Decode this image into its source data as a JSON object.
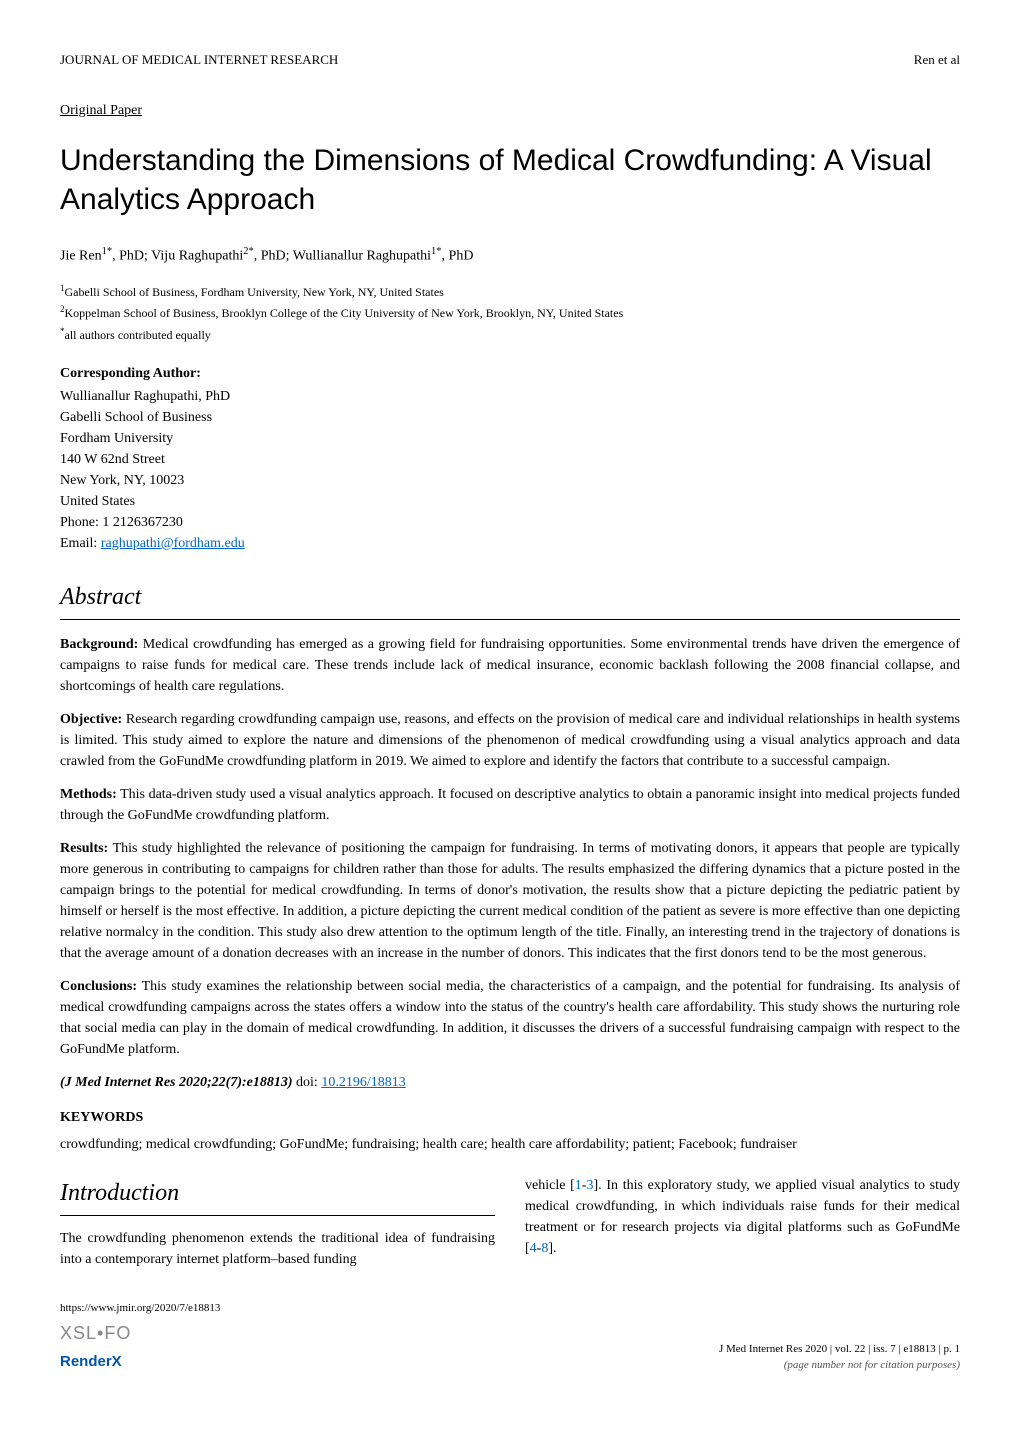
{
  "header": {
    "journal": "JOURNAL OF MEDICAL INTERNET RESEARCH",
    "authors_short": "Ren et al"
  },
  "section_label": "Original Paper",
  "title": "Understanding the Dimensions of Medical Crowdfunding: A Visual Analytics Approach",
  "authors_line": "Jie Ren",
  "authors_sup1": "1*",
  "authors_mid1": ", PhD; Viju Raghupathi",
  "authors_sup2": "2*",
  "authors_mid2": ", PhD; Wullianallur Raghupathi",
  "authors_sup3": "1*",
  "authors_end": ", PhD",
  "affiliations": {
    "a1_sup": "1",
    "a1": "Gabelli School of Business, Fordham University, New York, NY, United States",
    "a2_sup": "2",
    "a2": "Koppelman School of Business, Brooklyn College of the City University of New York, Brooklyn, NY, United States",
    "a3_sup": "*",
    "a3": "all authors contributed equally"
  },
  "corresponding": {
    "label": "Corresponding Author:",
    "name": "Wullianallur Raghupathi, PhD",
    "line1": "Gabelli School of Business",
    "line2": "Fordham University",
    "line3": "140 W 62nd Street",
    "line4": "New York, NY, 10023",
    "line5": "United States",
    "phone": "Phone: 1 2126367230",
    "email_label": "Email: ",
    "email": "raghupathi@fordham.edu"
  },
  "abstract": {
    "heading": "Abstract",
    "background_label": "Background:",
    "background": " Medical crowdfunding has emerged as a growing field for fundraising opportunities. Some environmental trends have driven the emergence of campaigns to raise funds for medical care. These trends include lack of medical insurance, economic backlash following the 2008 financial collapse, and shortcomings of health care regulations.",
    "objective_label": "Objective:",
    "objective": " Research regarding crowdfunding campaign use, reasons, and effects on the provision of medical care and individual relationships in health systems is limited. This study aimed to explore the nature and dimensions of the phenomenon of medical crowdfunding using a visual analytics approach and data crawled from the GoFundMe crowdfunding platform in 2019. We aimed to explore and identify the factors that contribute to a successful campaign.",
    "methods_label": "Methods:",
    "methods": " This data-driven study used a visual analytics approach. It focused on descriptive analytics to obtain a panoramic insight into medical projects funded through the GoFundMe crowdfunding platform.",
    "results_label": "Results:",
    "results": " This study highlighted the relevance of positioning the campaign for fundraising. In terms of motivating donors, it appears that people are typically more generous in contributing to campaigns for children rather than those for adults. The results emphasized the differing dynamics that a picture posted in the campaign brings to the potential for medical crowdfunding. In terms of donor's motivation, the results show that a picture depicting the pediatric patient by himself or herself is the most effective. In addition, a picture depicting the current medical condition of the patient as severe is more effective than one depicting relative normalcy in the condition. This study also drew attention to the optimum length of the title. Finally, an interesting trend in the trajectory of donations is that the average amount of a donation decreases with an increase in the number of donors. This indicates that the first donors tend to be the most generous.",
    "conclusions_label": "Conclusions:",
    "conclusions": " This study examines the relationship between social media, the characteristics of a campaign, and the potential for fundraising. Its analysis of medical crowdfunding campaigns across the states offers a window into the status of the country's health care affordability. This study shows the nurturing role that social media can play in the domain of medical crowdfunding. In addition, it discusses the drivers of a successful fundraising campaign with respect to the GoFundMe platform."
  },
  "citation": {
    "text": "(J Med Internet Res 2020;22(7):e18813)",
    "doi_label": " doi: ",
    "doi": "10.2196/18813"
  },
  "keywords": {
    "label": "KEYWORDS",
    "text": "crowdfunding; medical crowdfunding; GoFundMe; fundraising; health care; health care affordability; patient; Facebook; fundraiser"
  },
  "introduction": {
    "heading": "Introduction",
    "col1": "The crowdfunding phenomenon extends the traditional idea of fundraising into a contemporary internet platform–based funding",
    "col2_a": "vehicle [",
    "col2_ref1": "1",
    "col2_dash1": "-",
    "col2_ref2": "3",
    "col2_b": "]. In this exploratory study, we applied visual analytics to study medical crowdfunding, in which individuals raise funds for their medical treatment or for research projects via digital platforms such as GoFundMe [",
    "col2_ref3": "4",
    "col2_dash2": "-",
    "col2_ref4": "8",
    "col2_c": "]."
  },
  "footer": {
    "url": "https://www.jmir.org/2020/7/e18813",
    "xsl": "XSL•FO",
    "renderx": "RenderX",
    "citation_right": "J Med Internet Res 2020 | vol. 22 | iss. 7 | e18813 | p. 1",
    "pageinfo": "(page number not for citation purposes)"
  }
}
